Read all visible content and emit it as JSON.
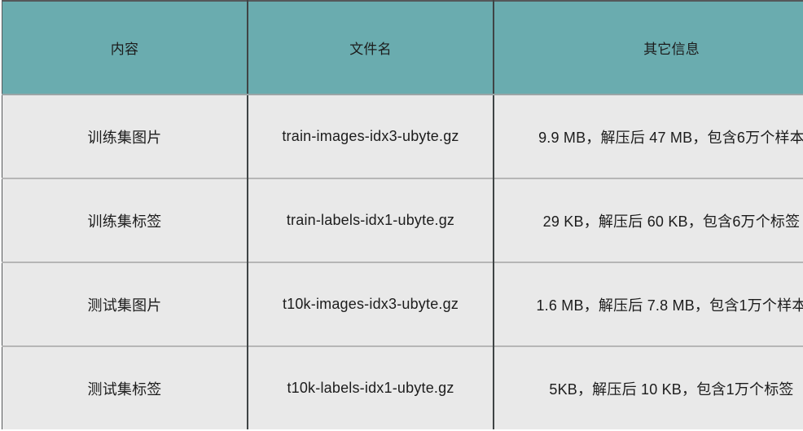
{
  "table": {
    "columns": [
      {
        "label": "内容"
      },
      {
        "label": "文件名"
      },
      {
        "label": "其它信息"
      }
    ],
    "rows": [
      {
        "content": "训练集图片",
        "filename": "train-images-idx3-ubyte.gz",
        "info": "9.9 MB，解压后 47 MB，包含6万个样本"
      },
      {
        "content": "训练集标签",
        "filename": "train-labels-idx1-ubyte.gz",
        "info": "29 KB，解压后 60 KB，包含6万个标签"
      },
      {
        "content": "测试集图片",
        "filename": "t10k-images-idx3-ubyte.gz",
        "info": "1.6 MB，解压后 7.8 MB，包含1万个样本"
      },
      {
        "content": "测试集标签",
        "filename": "t10k-labels-idx1-ubyte.gz",
        "info": "5KB，解压后 10 KB，包含1万个标签"
      }
    ]
  },
  "colors": {
    "header_bg": "#6aacaf",
    "row_bg": "#e9e9e9",
    "page_bg": "#ffffff",
    "column_divider": "#3f4445",
    "row_separator": "#b6b6b6",
    "outer_border": "#55585a",
    "header_divider": "#9aa5a6",
    "text": "#1c1c1c"
  }
}
